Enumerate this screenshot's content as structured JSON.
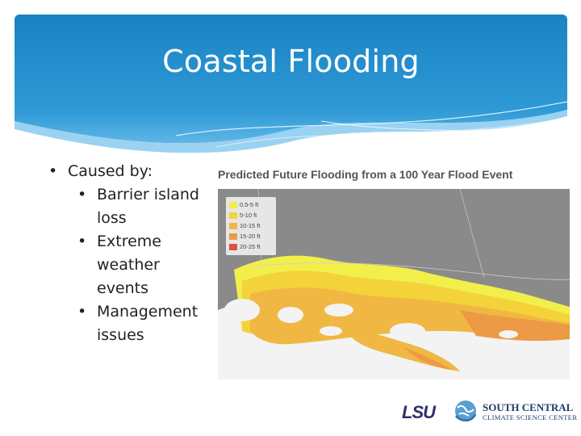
{
  "slide": {
    "title": "Coastal Flooding",
    "bullets": [
      {
        "text": "Caused by:",
        "level": 1
      },
      {
        "text": "Barrier island",
        "level": 2,
        "continuation": "loss"
      },
      {
        "text": "Extreme",
        "level": 2,
        "continuation": "weather events"
      },
      {
        "text": "Management",
        "level": 2,
        "continuation": "issues"
      }
    ]
  },
  "map": {
    "title": "Predicted Future Flooding from a 100 Year Flood Event",
    "legend": [
      {
        "label": "0.5-5 ft",
        "color": "#f2ef4a"
      },
      {
        "label": "5-10 ft",
        "color": "#f3d23a"
      },
      {
        "label": "10-15 ft",
        "color": "#f0b842"
      },
      {
        "label": "15-20 ft",
        "color": "#ec9a45"
      },
      {
        "label": "20-25 ft",
        "color": "#e0503c"
      }
    ]
  },
  "logos": {
    "lsu": "LSU",
    "scsc_line1": "SOUTH CENTRAL",
    "scsc_line2": "CLIMATE SCIENCE CENTER"
  },
  "colors": {
    "header_blue": "#1e88c9",
    "header_light": "#5fb6e6",
    "map_gray": "#8a8a8a"
  }
}
